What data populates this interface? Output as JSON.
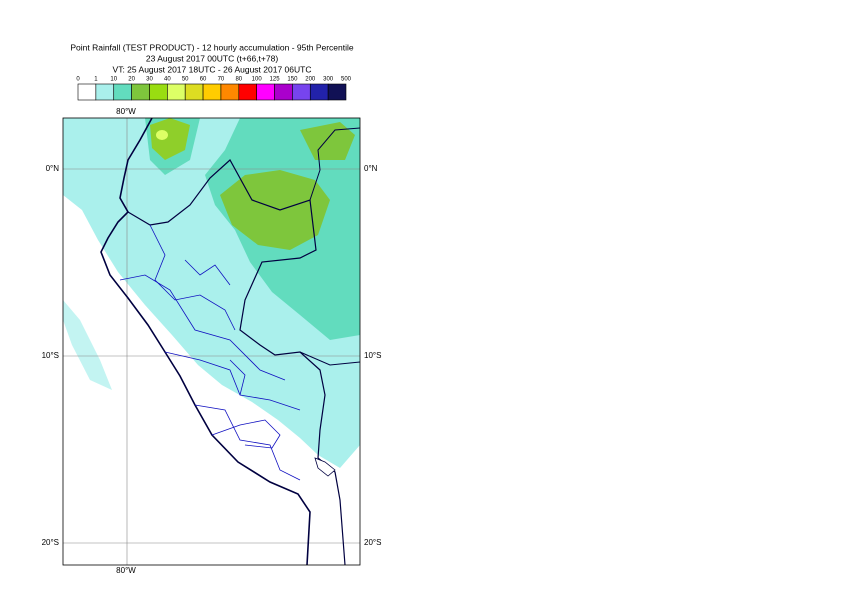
{
  "header": {
    "title": [
      "Point Rainfall (TEST PRODUCT) - 12 hourly accumulation - 95th Percentile",
      "23 August 2017 00UTC (t+66,t+78)",
      "VT: 25 August 2017 18UTC - 26 August 2017 06UTC"
    ]
  },
  "colorbar": {
    "levels": [
      0,
      1,
      10,
      20,
      30,
      40,
      50,
      60,
      70,
      80,
      100,
      125,
      150,
      200,
      300,
      500
    ],
    "colors": [
      "#ffffff",
      "#aaf0ec",
      "#62dcbe",
      "#7ec63c",
      "#99dd11",
      "#ddff66",
      "#dddd22",
      "#ffcc00",
      "#ff8800",
      "#ff0000",
      "#ff00ff",
      "#aa00cc",
      "#7744ee",
      "#2222aa",
      "#111155"
    ]
  },
  "map": {
    "lon_labels": [
      "80°W"
    ],
    "lat_labels": [
      "0°N",
      "10°S",
      "20°S"
    ]
  }
}
